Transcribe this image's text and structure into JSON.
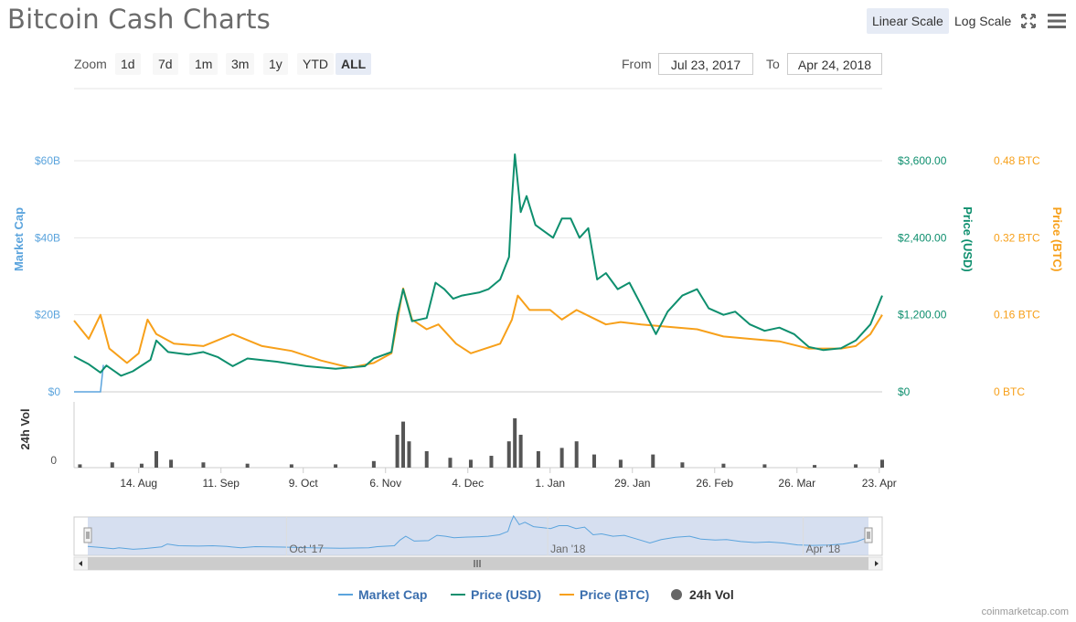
{
  "header": {
    "title": "Bitcoin Cash Charts",
    "linear_scale": "Linear Scale",
    "log_scale": "Log Scale"
  },
  "zoom": {
    "label": "Zoom",
    "buttons": [
      "1d",
      "7d",
      "1m",
      "3m",
      "1y",
      "YTD",
      "ALL"
    ],
    "active": "ALL"
  },
  "range": {
    "from_label": "From",
    "from_value": "Jul 23, 2017",
    "to_label": "To",
    "to_value": "Apr 24, 2018"
  },
  "credit": "coinmarketcap.com",
  "colors": {
    "market_cap": "#5ba4dd",
    "price_usd": "#0e8f6e",
    "price_btc": "#f7a01a",
    "volume": "#555555"
  },
  "chart_data": {
    "type": "line",
    "x_domain": [
      "2017-07-23",
      "2018-04-24"
    ],
    "x_ticks": [
      "14. Aug",
      "11. Sep",
      "9. Oct",
      "6. Nov",
      "4. Dec",
      "1. Jan",
      "29. Jan",
      "26. Feb",
      "26. Mar",
      "23. Apr"
    ],
    "x_tick_dates": [
      "2017-08-14",
      "2017-09-11",
      "2017-10-09",
      "2017-11-06",
      "2017-12-04",
      "2018-01-01",
      "2018-01-29",
      "2018-02-26",
      "2018-03-26",
      "2018-04-23"
    ],
    "axes": {
      "market_cap": {
        "label": "Market Cap",
        "ticks": [
          "$0",
          "$20B",
          "$40B",
          "$60B"
        ],
        "range": [
          0,
          60
        ]
      },
      "price_usd": {
        "label": "Price (USD)",
        "ticks": [
          "$0",
          "$1,200.00",
          "$2,400.00",
          "$3,600.00"
        ],
        "range": [
          0,
          3600
        ]
      },
      "price_btc": {
        "label": "Price (BTC)",
        "ticks": [
          "0 BTC",
          "0.16 BTC",
          "0.32 BTC",
          "0.48 BTC"
        ],
        "range": [
          0,
          0.48
        ]
      },
      "volume": {
        "label": "24h Vol",
        "ticks": [
          "0"
        ]
      }
    },
    "series": [
      {
        "name": "Price (USD)",
        "key": "price_usd",
        "points": [
          [
            "2017-07-23",
            550
          ],
          [
            "2017-07-28",
            430
          ],
          [
            "2017-08-01",
            300
          ],
          [
            "2017-08-03",
            410
          ],
          [
            "2017-08-08",
            250
          ],
          [
            "2017-08-12",
            320
          ],
          [
            "2017-08-18",
            500
          ],
          [
            "2017-08-20",
            800
          ],
          [
            "2017-08-24",
            620
          ],
          [
            "2017-08-31",
            580
          ],
          [
            "2017-09-05",
            620
          ],
          [
            "2017-09-10",
            540
          ],
          [
            "2017-09-15",
            400
          ],
          [
            "2017-09-20",
            520
          ],
          [
            "2017-09-30",
            470
          ],
          [
            "2017-10-10",
            400
          ],
          [
            "2017-10-20",
            360
          ],
          [
            "2017-10-30",
            400
          ],
          [
            "2017-11-02",
            520
          ],
          [
            "2017-11-08",
            620
          ],
          [
            "2017-11-10",
            1200
          ],
          [
            "2017-11-12",
            1600
          ],
          [
            "2017-11-15",
            1100
          ],
          [
            "2017-11-20",
            1150
          ],
          [
            "2017-11-23",
            1700
          ],
          [
            "2017-11-26",
            1600
          ],
          [
            "2017-11-29",
            1450
          ],
          [
            "2017-12-02",
            1500
          ],
          [
            "2017-12-08",
            1550
          ],
          [
            "2017-12-11",
            1600
          ],
          [
            "2017-12-15",
            1750
          ],
          [
            "2017-12-18",
            2100
          ],
          [
            "2017-12-19",
            3000
          ],
          [
            "2017-12-20",
            3700
          ],
          [
            "2017-12-22",
            2800
          ],
          [
            "2017-12-24",
            3050
          ],
          [
            "2017-12-27",
            2600
          ],
          [
            "2017-12-30",
            2500
          ],
          [
            "2018-01-02",
            2400
          ],
          [
            "2018-01-05",
            2700
          ],
          [
            "2018-01-08",
            2700
          ],
          [
            "2018-01-11",
            2400
          ],
          [
            "2018-01-14",
            2550
          ],
          [
            "2018-01-17",
            1750
          ],
          [
            "2018-01-20",
            1850
          ],
          [
            "2018-01-24",
            1600
          ],
          [
            "2018-01-28",
            1700
          ],
          [
            "2018-02-01",
            1350
          ],
          [
            "2018-02-06",
            900
          ],
          [
            "2018-02-10",
            1250
          ],
          [
            "2018-02-15",
            1500
          ],
          [
            "2018-02-20",
            1600
          ],
          [
            "2018-02-24",
            1300
          ],
          [
            "2018-03-01",
            1200
          ],
          [
            "2018-03-05",
            1250
          ],
          [
            "2018-03-10",
            1050
          ],
          [
            "2018-03-15",
            950
          ],
          [
            "2018-03-20",
            1000
          ],
          [
            "2018-03-25",
            900
          ],
          [
            "2018-03-30",
            700
          ],
          [
            "2018-04-04",
            650
          ],
          [
            "2018-04-10",
            680
          ],
          [
            "2018-04-15",
            800
          ],
          [
            "2018-04-20",
            1050
          ],
          [
            "2018-04-24",
            1500
          ]
        ]
      },
      {
        "name": "Price (BTC)",
        "key": "price_btc",
        "points": [
          [
            "2017-07-23",
            0.148
          ],
          [
            "2017-07-28",
            0.11
          ],
          [
            "2017-08-01",
            0.16
          ],
          [
            "2017-08-04",
            0.09
          ],
          [
            "2017-08-10",
            0.06
          ],
          [
            "2017-08-14",
            0.08
          ],
          [
            "2017-08-17",
            0.15
          ],
          [
            "2017-08-20",
            0.12
          ],
          [
            "2017-08-26",
            0.1
          ],
          [
            "2017-09-05",
            0.095
          ],
          [
            "2017-09-15",
            0.12
          ],
          [
            "2017-09-25",
            0.095
          ],
          [
            "2017-10-05",
            0.085
          ],
          [
            "2017-10-15",
            0.065
          ],
          [
            "2017-10-25",
            0.05
          ],
          [
            "2017-11-02",
            0.06
          ],
          [
            "2017-11-08",
            0.08
          ],
          [
            "2017-11-12",
            0.215
          ],
          [
            "2017-11-15",
            0.15
          ],
          [
            "2017-11-20",
            0.13
          ],
          [
            "2017-11-24",
            0.14
          ],
          [
            "2017-11-30",
            0.1
          ],
          [
            "2017-12-05",
            0.08
          ],
          [
            "2017-12-10",
            0.09
          ],
          [
            "2017-12-15",
            0.1
          ],
          [
            "2017-12-19",
            0.15
          ],
          [
            "2017-12-21",
            0.2
          ],
          [
            "2017-12-25",
            0.17
          ],
          [
            "2018-01-01",
            0.17
          ],
          [
            "2018-01-05",
            0.15
          ],
          [
            "2018-01-10",
            0.17
          ],
          [
            "2018-01-15",
            0.155
          ],
          [
            "2018-01-20",
            0.14
          ],
          [
            "2018-01-25",
            0.145
          ],
          [
            "2018-02-01",
            0.14
          ],
          [
            "2018-02-10",
            0.135
          ],
          [
            "2018-02-20",
            0.13
          ],
          [
            "2018-03-01",
            0.115
          ],
          [
            "2018-03-10",
            0.11
          ],
          [
            "2018-03-20",
            0.105
          ],
          [
            "2018-03-30",
            0.09
          ],
          [
            "2018-04-10",
            0.09
          ],
          [
            "2018-04-15",
            0.095
          ],
          [
            "2018-04-20",
            0.12
          ],
          [
            "2018-04-24",
            0.16
          ]
        ]
      },
      {
        "name": "Market Cap",
        "key": "market_cap",
        "points": [
          [
            "2017-07-23",
            0
          ],
          [
            "2017-08-01",
            0
          ],
          [
            "2017-08-02",
            7
          ]
        ]
      },
      {
        "name": "24h Vol",
        "key": "volume",
        "bars": [
          [
            "2017-07-25",
            0.05
          ],
          [
            "2017-08-05",
            0.08
          ],
          [
            "2017-08-15",
            0.06
          ],
          [
            "2017-08-20",
            0.25
          ],
          [
            "2017-08-25",
            0.12
          ],
          [
            "2017-09-05",
            0.08
          ],
          [
            "2017-09-20",
            0.06
          ],
          [
            "2017-10-05",
            0.05
          ],
          [
            "2017-10-20",
            0.05
          ],
          [
            "2017-11-02",
            0.1
          ],
          [
            "2017-11-10",
            0.5
          ],
          [
            "2017-11-12",
            0.7
          ],
          [
            "2017-11-14",
            0.4
          ],
          [
            "2017-11-20",
            0.25
          ],
          [
            "2017-11-28",
            0.15
          ],
          [
            "2017-12-05",
            0.12
          ],
          [
            "2017-12-12",
            0.18
          ],
          [
            "2017-12-18",
            0.4
          ],
          [
            "2017-12-20",
            0.75
          ],
          [
            "2017-12-22",
            0.5
          ],
          [
            "2017-12-28",
            0.25
          ],
          [
            "2018-01-05",
            0.3
          ],
          [
            "2018-01-10",
            0.4
          ],
          [
            "2018-01-16",
            0.2
          ],
          [
            "2018-01-25",
            0.12
          ],
          [
            "2018-02-05",
            0.2
          ],
          [
            "2018-02-15",
            0.08
          ],
          [
            "2018-03-01",
            0.06
          ],
          [
            "2018-03-15",
            0.05
          ],
          [
            "2018-04-01",
            0.04
          ],
          [
            "2018-04-15",
            0.05
          ],
          [
            "2018-04-24",
            0.12
          ]
        ]
      }
    ],
    "navigator": {
      "ticks": [
        "Oct '17",
        "Jan '18",
        "Apr '18"
      ],
      "tick_dates": [
        "2017-10-01",
        "2018-01-01",
        "2018-04-01"
      ],
      "scroll_icon": "scrollbar-grip-icon"
    },
    "legend": {
      "placement": "bottom",
      "items": [
        {
          "label": "Market Cap",
          "key": "market_cap"
        },
        {
          "label": "Price (USD)",
          "key": "price_usd"
        },
        {
          "label": "Price (BTC)",
          "key": "price_btc"
        },
        {
          "label": "24h Vol",
          "key": "volume"
        }
      ]
    },
    "grid": true
  }
}
